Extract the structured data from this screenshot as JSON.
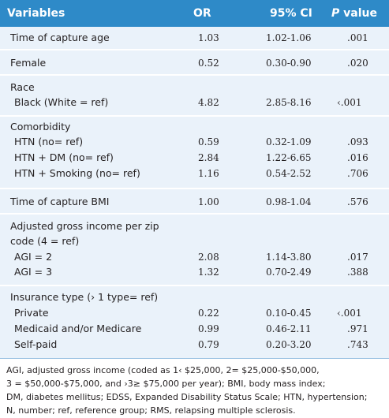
{
  "table": {
    "headers": {
      "variables": "Variables",
      "or": "OR",
      "ci": "95% CI",
      "p_italic": "P",
      "p_rest": " value"
    },
    "rows": [
      {
        "label": "Time of capture age",
        "or": "1.03",
        "ci": "1.02-1.06",
        "p": ".001"
      },
      {
        "label": "Female",
        "or": "0.52",
        "ci": "0.30-0.90",
        "p": ".020"
      },
      {
        "label": "Race",
        "or": "",
        "ci": "",
        "p": ""
      },
      {
        "label": "Black (White = ref)",
        "or": "4.82",
        "ci": "2.85-8.16",
        "p": "‹.001"
      },
      {
        "label": "Comorbidity",
        "or": "",
        "ci": "",
        "p": ""
      },
      {
        "label": "HTN (no= ref)",
        "or": "0.59",
        "ci": "0.32-1.09",
        "p": ".093"
      },
      {
        "label": "HTN + DM (no= ref)",
        "or": "2.84",
        "ci": "1.22-6.65",
        "p": ".016"
      },
      {
        "label": "HTN + Smoking (no= ref)",
        "or": "1.16",
        "ci": "0.54-2.52",
        "p": ".706"
      },
      {
        "label": "Time of capture BMI",
        "or": "1.00",
        "ci": "0.98-1.04",
        "p": ".576"
      },
      {
        "label": "Adjusted gross income per zip",
        "or": "",
        "ci": "",
        "p": ""
      },
      {
        "label": "code (4 = ref)",
        "or": "",
        "ci": "",
        "p": ""
      },
      {
        "label": "AGI = 2",
        "or": "2.08",
        "ci": "1.14-3.80",
        "p": ".017"
      },
      {
        "label": "AGI = 3",
        "or": "1.32",
        "ci": "0.70-2.49",
        "p": ".388"
      },
      {
        "label": "Insurance type (› 1 type= ref)",
        "or": "",
        "ci": "",
        "p": ""
      },
      {
        "label": "Private",
        "or": "0.22",
        "ci": "0.10-0.45",
        "p": "‹.001"
      },
      {
        "label": "Medicaid and/or Medicare",
        "or": "0.99",
        "ci": "0.46-2.11",
        "p": ".971"
      },
      {
        "label": "Self-paid",
        "or": "0.79",
        "ci": "0.20-3.20",
        "p": ".743"
      }
    ]
  },
  "footnote": [
    "AGI, adjusted gross income (coded as 1‹ $25,000, 2= $25,000-$50,000,",
    "3 = $50,000-$75,000, and ›3≥ $75,000 per year); BMI, body mass index;",
    "DM, diabetes mellitus; EDSS, Expanded Disability Status Scale; HTN, hypertension;",
    "N, number; ref, reference group; RMS, relapsing multiple sclerosis."
  ],
  "colors": {
    "header_bg": "#2e8ac8",
    "row_bg": "#eaf2fa"
  }
}
